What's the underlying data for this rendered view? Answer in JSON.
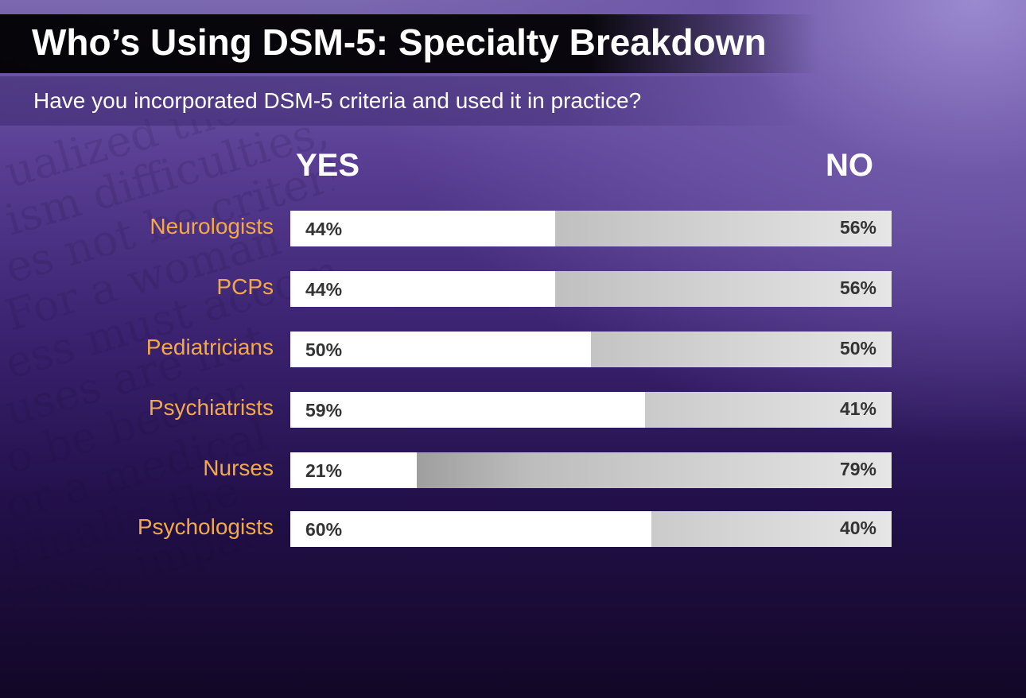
{
  "header": {
    "title": "Who’s Using DSM-5: Specialty Breakdown",
    "subtitle": "Have you incorporated DSM-5 criteria and used it in practice?"
  },
  "chart_data": {
    "type": "bar",
    "orientation": "horizontal",
    "stacked": true,
    "column_headers": {
      "yes": "YES",
      "no": "NO"
    },
    "categories": [
      "Neurologists",
      "PCPs",
      "Pediatricians",
      "Psychiatrists",
      "Nurses",
      "Psychologists"
    ],
    "series": [
      {
        "name": "YES",
        "values": [
          44,
          44,
          50,
          59,
          21,
          60
        ],
        "labels": [
          "44%",
          "44%",
          "50%",
          "59%",
          "21%",
          "60%"
        ],
        "color": "#ffffff"
      },
      {
        "name": "NO",
        "values": [
          56,
          56,
          50,
          41,
          79,
          40
        ],
        "labels": [
          "56%",
          "56%",
          "50%",
          "41%",
          "79%",
          "40%"
        ],
        "color": "#b5b5b5"
      }
    ],
    "xlim": [
      0,
      100
    ],
    "grid": false,
    "legend": "top",
    "category_label_color": "#f3a94a"
  }
}
